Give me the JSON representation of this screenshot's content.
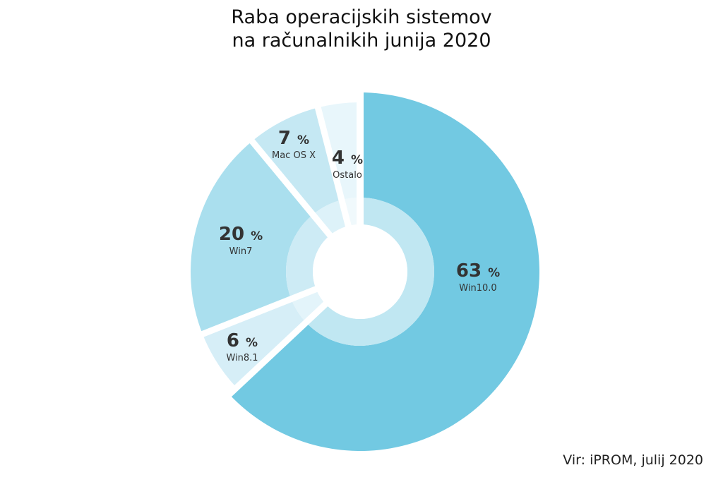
{
  "title": {
    "line1": "Raba operacijskih sistemov",
    "line2": "na računalnikih junija 2020"
  },
  "source": "Vir: iPROM, julij 2020",
  "labels": [
    {
      "name": "Win10.0",
      "value": "63",
      "unit": "%"
    },
    {
      "name": "Win8.1",
      "value": "6",
      "unit": "%"
    },
    {
      "name": "Win7",
      "value": "20",
      "unit": "%"
    },
    {
      "name": "Mac OS X",
      "value": "7",
      "unit": "%"
    },
    {
      "name": "Ostalo",
      "value": "4",
      "unit": "%"
    }
  ],
  "chart_data": {
    "type": "pie",
    "title": "Raba operacijskih sistemov na računalnikih junija 2020",
    "categories": [
      "Win10.0",
      "Win8.1",
      "Win7",
      "Mac OS X",
      "Ostalo"
    ],
    "values": [
      63,
      6,
      20,
      7,
      4
    ],
    "unit": "%",
    "colors": [
      "#72c9e2",
      "#d6eef7",
      "#aadfee",
      "#c5e8f3",
      "#e8f6fb"
    ],
    "donut": true,
    "annotation": "Vir: iPROM, julij 2020"
  }
}
